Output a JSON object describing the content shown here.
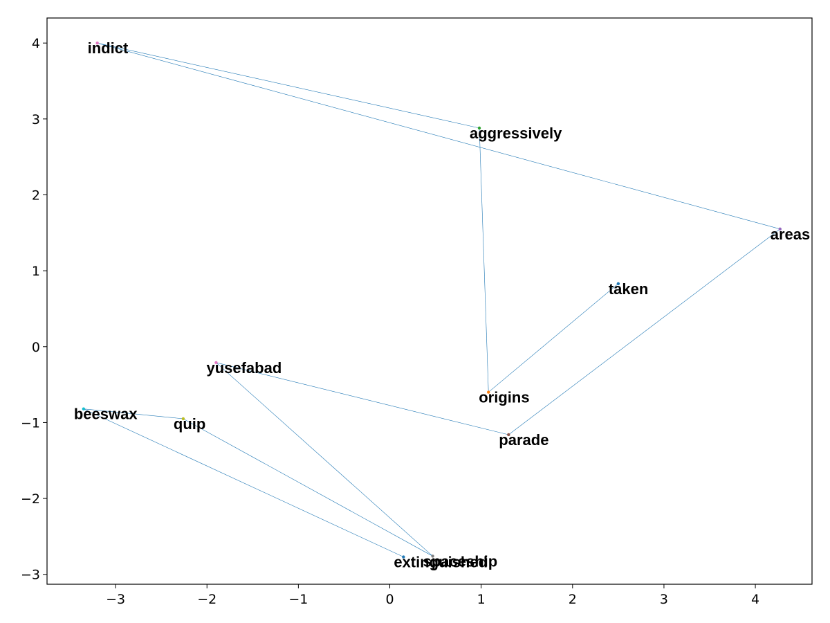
{
  "chart_data": {
    "type": "scatter",
    "title": "",
    "xlabel": "",
    "ylabel": "",
    "xlim": [
      -3.75,
      4.62
    ],
    "ylim": [
      -3.13,
      4.33
    ],
    "xticks": [
      -3,
      -2,
      -1,
      0,
      1,
      2,
      3,
      4
    ],
    "yticks": [
      -3,
      -2,
      -1,
      0,
      1,
      2,
      3,
      4
    ],
    "grid": false,
    "line_color": "#1f77b4",
    "points": [
      {
        "label": "indict",
        "x": -3.2,
        "y": 4.0,
        "color": "#e377c2"
      },
      {
        "label": "aggressively",
        "x": 0.98,
        "y": 2.88,
        "color": "#2ca02c"
      },
      {
        "label": "areas",
        "x": 4.27,
        "y": 1.55,
        "color": "#9467bd"
      },
      {
        "label": "taken",
        "x": 2.5,
        "y": 0.83,
        "color": "#1f77b4"
      },
      {
        "label": "yusefabad",
        "x": -1.9,
        "y": -0.21,
        "color": "#e377c2"
      },
      {
        "label": "origins",
        "x": 1.08,
        "y": -0.6,
        "color": "#ff7f0e"
      },
      {
        "label": "beeswax",
        "x": -3.35,
        "y": -0.82,
        "color": "#17becf"
      },
      {
        "label": "quip",
        "x": -2.26,
        "y": -0.95,
        "color": "#bcbd22"
      },
      {
        "label": "parade",
        "x": 1.3,
        "y": -1.16,
        "color": "#8c564b"
      },
      {
        "label": "extinguished",
        "x": 0.15,
        "y": -2.77,
        "color": "#1f77b4"
      },
      {
        "label": "spaceship",
        "x": 0.47,
        "y": -2.76,
        "color": "#7f7f7f"
      }
    ],
    "edges": [
      [
        "indict",
        "aggressively"
      ],
      [
        "indict",
        "areas"
      ],
      [
        "aggressively",
        "origins"
      ],
      [
        "origins",
        "taken"
      ],
      [
        "areas",
        "parade"
      ],
      [
        "yusefabad",
        "parade"
      ],
      [
        "yusefabad",
        "spaceship"
      ],
      [
        "beeswax",
        "quip"
      ],
      [
        "beeswax",
        "extinguished"
      ],
      [
        "quip",
        "spaceship"
      ]
    ]
  }
}
